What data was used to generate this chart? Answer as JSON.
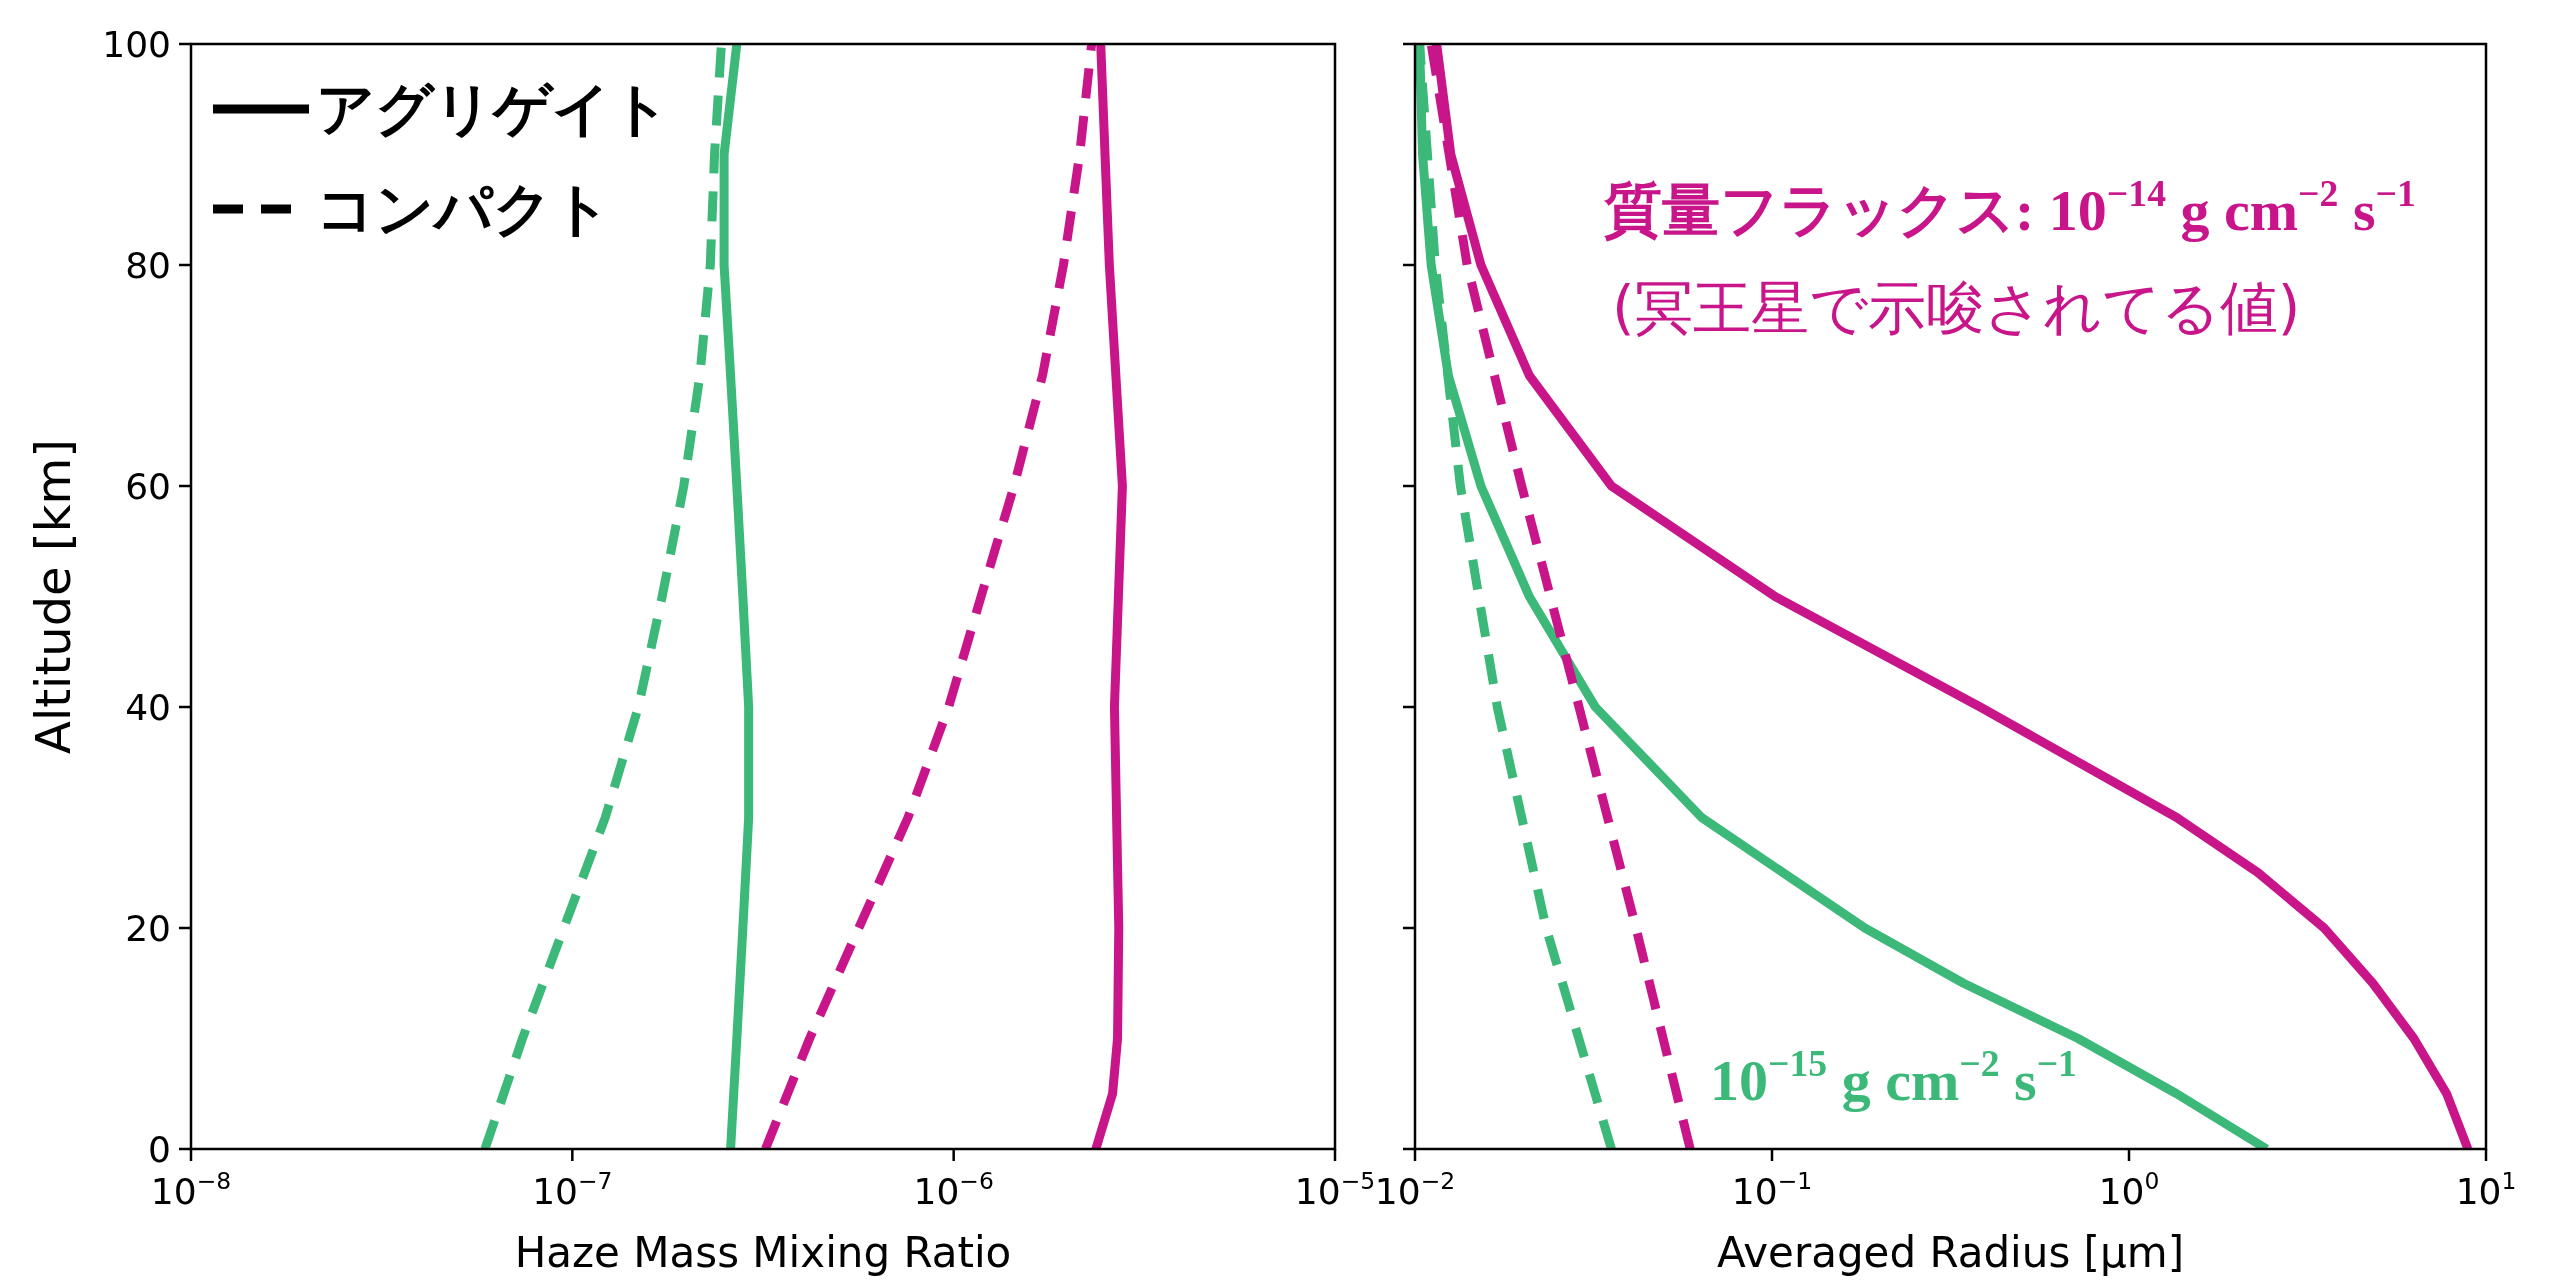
{
  "chart_data": [
    {
      "type": "line",
      "xlabel": "Haze Mass Mixing Ratio",
      "ylabel": "Altitude [km]",
      "log": "x",
      "xlim": [
        1e-08,
        1e-05
      ],
      "xticks": [
        {
          "value": 1e-08,
          "label": "10$^{−8}$"
        },
        {
          "value": 1e-07,
          "label": "10$^{−7}$"
        },
        {
          "value": 1e-06,
          "label": "10$^{−6}$"
        },
        {
          "value": 1e-05,
          "label": "10$^{−5}$"
        }
      ],
      "ylim": [
        0,
        100
      ],
      "yticks": [
        0,
        20,
        40,
        60,
        80,
        100
      ],
      "annotations": [
        "アグリゲイト",
        "コンパクト"
      ],
      "series": [
        {
          "color": "#3cb878",
          "line_style": "solid",
          "x": [
            2.6e-07,
            2.7e-07,
            2.8e-07,
            2.9e-07,
            2.9e-07,
            2.8e-07,
            2.7e-07,
            2.6e-07,
            2.5e-07,
            2.5e-07,
            2.7e-07
          ],
          "values": [
            0,
            10,
            20,
            30,
            40,
            50,
            60,
            70,
            80,
            90,
            100
          ]
        },
        {
          "color": "#3cb878",
          "line_style": "dashed",
          "x": [
            5.9e-08,
            7.4e-08,
            9.5e-08,
            1.22e-07,
            1.49e-07,
            1.72e-07,
            1.96e-07,
            2.16e-07,
            2.3e-07,
            2.36e-07,
            2.46e-07
          ],
          "values": [
            0,
            10,
            20,
            30,
            40,
            50,
            60,
            70,
            80,
            90,
            100
          ]
        },
        {
          "color": "#c8158a",
          "line_style": "solid",
          "x": [
            2.36e-06,
            2.61e-06,
            2.69e-06,
            2.71e-06,
            2.64e-06,
            2.77e-06,
            2.56e-06,
            2.43e-06
          ],
          "values": [
            0,
            5,
            10,
            20,
            40,
            60,
            80,
            100
          ]
        },
        {
          "color": "#c8158a",
          "line_style": "dashed",
          "x": [
            3.21e-07,
            4.19e-07,
            5.64e-07,
            7.59e-07,
            9.7e-07,
            1.18e-06,
            1.44e-06,
            1.71e-06,
            1.94e-06,
            2.14e-06,
            2.3e-06
          ],
          "values": [
            0,
            10,
            20,
            30,
            40,
            50,
            60,
            70,
            80,
            90,
            100
          ]
        }
      ]
    },
    {
      "type": "line",
      "xlabel": "Averaged Radius [μm]",
      "log": "x",
      "tick_labels": "x",
      "xlim": [
        0.01,
        10
      ],
      "xticks": [
        {
          "value": 0.01,
          "label": "10$^{−2}$"
        },
        {
          "value": 0.1,
          "label": "10$^{−1}$"
        },
        {
          "value": 1,
          "label": "10$^{0}$"
        },
        {
          "value": 10,
          "label": "10$^{1}$"
        }
      ],
      "ylim": [
        0,
        100
      ],
      "yticks": [
        0,
        20,
        40,
        60,
        80,
        100
      ],
      "annotations": [
        "質量フラックス: 10$^{−14}$ g cm$^{−2}$ s$^{−1}$",
        "(冥王星で示唆されてる値)",
        "10$^{−15}$ g cm$^{−2}$ s$^{−1}$"
      ],
      "series": [
        {
          "color": "#c8158a",
          "line_style": "solid",
          "x": [
            8.9,
            7.76,
            6.28,
            4.82,
            3.52,
            2.3,
            1.36,
            0.383,
            0.102,
            0.0355,
            0.0209,
            0.0153,
            0.0126,
            0.0115
          ],
          "values": [
            0,
            5,
            10,
            15,
            20,
            25,
            30,
            40,
            50,
            60,
            70,
            80,
            90,
            100
          ]
        },
        {
          "color": "#3cb878",
          "line_style": "solid",
          "x": [
            2.43,
            1.36,
            0.72,
            0.344,
            0.182,
            0.0635,
            0.032,
            0.0209,
            0.0153,
            0.0124,
            0.0111,
            0.0105,
            0.0103
          ],
          "values": [
            0,
            5,
            10,
            15,
            20,
            30,
            40,
            50,
            60,
            70,
            80,
            90,
            100
          ]
        },
        {
          "color": "#c8158a",
          "line_style": "dashed",
          "x": [
            0.059,
            0.0416,
            0.0288,
            0.0199,
            0.014,
            0.0111
          ],
          "values": [
            0,
            20,
            40,
            60,
            80,
            100
          ]
        },
        {
          "color": "#3cb878",
          "line_style": "dashed",
          "x": [
            0.0355,
            0.0233,
            0.017,
            0.0134,
            0.0114,
            0.0103
          ],
          "values": [
            0,
            20,
            40,
            60,
            80,
            100
          ]
        }
      ]
    }
  ]
}
